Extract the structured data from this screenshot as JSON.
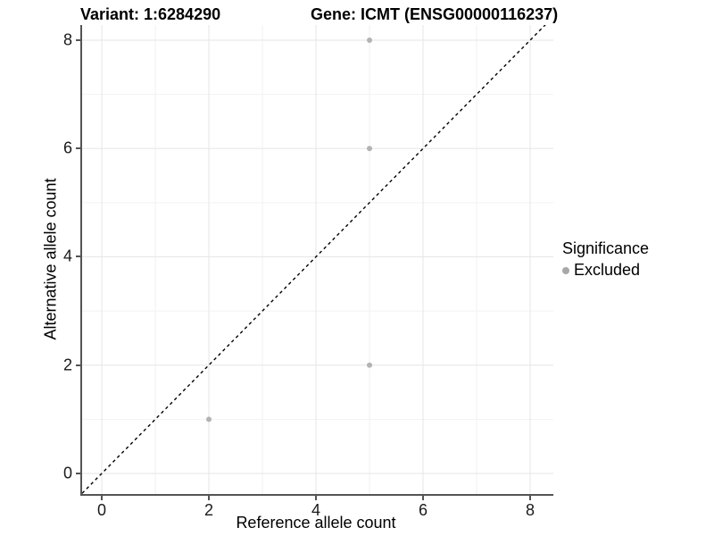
{
  "chart_data": {
    "type": "scatter",
    "title_left": "Variant: 1:6284290",
    "title_right": "Gene: ICMT (ENSG00000116237)",
    "xlabel": "Reference allele count",
    "ylabel": "Alternative allele count",
    "xlim": [
      -0.367,
      8.433
    ],
    "ylim": [
      -0.38,
      8.28
    ],
    "x_ticks": [
      0,
      2,
      4,
      6,
      8
    ],
    "y_ticks": [
      0,
      2,
      4,
      6,
      8
    ],
    "x_minor": [
      1,
      3,
      5,
      7
    ],
    "y_minor": [
      1,
      3,
      5,
      7
    ],
    "grid": "on",
    "series": [
      {
        "name": "Excluded",
        "points": [
          {
            "x": 5,
            "y": 8
          },
          {
            "x": 5,
            "y": 6
          },
          {
            "x": 5,
            "y": 2
          },
          {
            "x": 2,
            "y": 1
          }
        ],
        "color": "#b3b3b3"
      }
    ],
    "reference_line": {
      "slope": 1,
      "intercept": 0,
      "style": "dashed",
      "color": "#000000"
    },
    "legend": {
      "title": "Significance",
      "position": "right",
      "items": [
        {
          "label": "Excluded",
          "color": "#a8a8a8"
        }
      ]
    },
    "colors": {
      "background": "#ffffff",
      "axis_line": "#545454",
      "grid_major": "#e6e6e6",
      "grid_minor": "#f2f2f2",
      "point": "#b3b3b3",
      "text": "#000000"
    }
  }
}
